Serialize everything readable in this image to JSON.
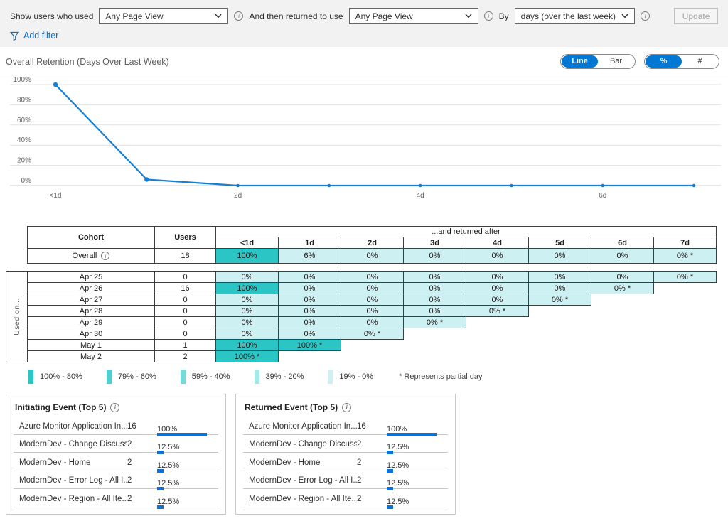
{
  "colors": {
    "accent": "#0078d4",
    "link": "#0f6cbd",
    "line": "#1580d8",
    "bar": "#0c72d7",
    "grid": "#e1e1e1"
  },
  "toolbar": {
    "show_label": "Show users who used",
    "initiating_value": "Any Page View",
    "return_label": "And then returned to use",
    "returned_value": "Any Page View",
    "by_label": "By",
    "by_value": "days (over the last week)",
    "update_label": "Update",
    "add_filter_label": "Add filter"
  },
  "chart_header": {
    "title": "Overall Retention (Days Over Last Week)",
    "chart_type_toggle": {
      "options": [
        "Line",
        "Bar"
      ],
      "selected": 0
    },
    "format_toggle": {
      "options": [
        "%",
        "#"
      ],
      "selected": 0
    }
  },
  "chart_data": {
    "type": "line",
    "title": "Overall Retention (Days Over Last Week)",
    "x": [
      "<1d",
      "1d",
      "2d",
      "3d",
      "4d",
      "5d",
      "6d",
      "7d"
    ],
    "values": [
      100,
      6,
      0,
      0,
      0,
      0,
      0,
      0
    ],
    "x_axis_labels_shown": [
      "<1d",
      "2d",
      "4d",
      "6d"
    ],
    "y_ticks": [
      100,
      80,
      60,
      40,
      20,
      0
    ],
    "y_tick_suffix": "%",
    "ylim": [
      0,
      100
    ],
    "grid": true,
    "legend": "none"
  },
  "retention_table": {
    "cohort_header": "Cohort",
    "users_header": "Users",
    "returned_after_header": "...and returned after",
    "day_headers": [
      "<1d",
      "1d",
      "2d",
      "3d",
      "4d",
      "5d",
      "6d",
      "7d"
    ],
    "overall_row": {
      "label": "Overall",
      "users": "18",
      "cells": [
        "100%",
        "6%",
        "0%",
        "0%",
        "0%",
        "0%",
        "0%",
        "0% *"
      ]
    }
  },
  "cohort_table": {
    "side_label": "Used on...",
    "rows": [
      {
        "date": "Apr 25",
        "users": "0",
        "cells": [
          "0%",
          "0%",
          "0%",
          "0%",
          "0%",
          "0%",
          "0%",
          "0% *"
        ]
      },
      {
        "date": "Apr 26",
        "users": "16",
        "cells": [
          "100%",
          "0%",
          "0%",
          "0%",
          "0%",
          "0%",
          "0% *"
        ]
      },
      {
        "date": "Apr 27",
        "users": "0",
        "cells": [
          "0%",
          "0%",
          "0%",
          "0%",
          "0%",
          "0% *"
        ]
      },
      {
        "date": "Apr 28",
        "users": "0",
        "cells": [
          "0%",
          "0%",
          "0%",
          "0%",
          "0% *"
        ]
      },
      {
        "date": "Apr 29",
        "users": "0",
        "cells": [
          "0%",
          "0%",
          "0%",
          "0% *"
        ]
      },
      {
        "date": "Apr 30",
        "users": "0",
        "cells": [
          "0%",
          "0%",
          "0% *"
        ]
      },
      {
        "date": "May 1",
        "users": "1",
        "cells": [
          "100%",
          "100% *"
        ]
      },
      {
        "date": "May 2",
        "users": "2",
        "cells": [
          "100% *"
        ]
      }
    ]
  },
  "heatmap": {
    "palette": [
      "#2cc5c6",
      "#4fcfcf",
      "#76dada",
      "#a4e8e8",
      "#cdf0f2"
    ],
    "legend_labels": [
      "100% - 80%",
      "79% - 60%",
      "59% - 40%",
      "39% - 20%",
      "19% - 0%"
    ],
    "partial_note": "* Represents partial day"
  },
  "event_panels": [
    {
      "title": "Initiating Event (Top 5)",
      "rows": [
        {
          "name": "Azure Monitor Application In...",
          "count": "16",
          "pct": "100%",
          "pct_value": 100
        },
        {
          "name": "ModernDev - Change Discuss...",
          "count": "2",
          "pct": "12.5%",
          "pct_value": 12.5
        },
        {
          "name": "ModernDev - Home",
          "count": "2",
          "pct": "12.5%",
          "pct_value": 12.5
        },
        {
          "name": "ModernDev - Error Log - All I...",
          "count": "2",
          "pct": "12.5%",
          "pct_value": 12.5
        },
        {
          "name": "ModernDev - Region - All Ite...",
          "count": "2",
          "pct": "12.5%",
          "pct_value": 12.5
        }
      ]
    },
    {
      "title": "Returned Event (Top 5)",
      "rows": [
        {
          "name": "Azure Monitor Application In...",
          "count": "16",
          "pct": "100%",
          "pct_value": 100
        },
        {
          "name": "ModernDev - Change Discuss...",
          "count": "2",
          "pct": "12.5%",
          "pct_value": 12.5
        },
        {
          "name": "ModernDev - Home",
          "count": "2",
          "pct": "12.5%",
          "pct_value": 12.5
        },
        {
          "name": "ModernDev - Error Log - All I...",
          "count": "2",
          "pct": "12.5%",
          "pct_value": 12.5
        },
        {
          "name": "ModernDev - Region - All Ite...",
          "count": "2",
          "pct": "12.5%",
          "pct_value": 12.5
        }
      ]
    }
  ]
}
